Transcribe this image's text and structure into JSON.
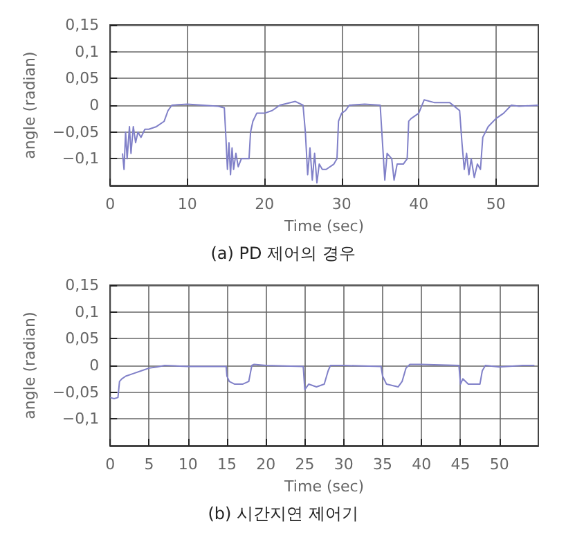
{
  "chart_data": [
    {
      "type": "line",
      "title": "(a) PD 제어의 경우",
      "xlabel": "Time (sec)",
      "ylabel": "angle (radian)",
      "grid": true,
      "marker": "none",
      "line_style": "solid",
      "xlim": [
        0,
        55.5
      ],
      "xticks": [
        0,
        10,
        20,
        30,
        40,
        50
      ],
      "ylim": [
        -0.15,
        0.15
      ],
      "yticks": [
        {
          "value": 0.15,
          "label": "0,15"
        },
        {
          "value": 0.1,
          "label": "0,1"
        },
        {
          "value": 0.05,
          "label": "0,05"
        },
        0,
        {
          "value": -0.05,
          "label": "−0,05"
        },
        {
          "value": -0.1,
          "label": "−0,1"
        }
      ],
      "series": [
        {
          "color": "#8080c8",
          "x": [
            1.6,
            1.8,
            2.0,
            2.2,
            2.5,
            2.7,
            3.0,
            3.3,
            3.6,
            4.0,
            4.5,
            5,
            6,
            7,
            7.5,
            8,
            10,
            12,
            14,
            14.8,
            15.0,
            15.2,
            15.4,
            15.6,
            15.8,
            16,
            16.3,
            16.6,
            17,
            18,
            18.2,
            18.5,
            19,
            20,
            21,
            22,
            24,
            25,
            25.3,
            25.6,
            25.9,
            26.2,
            26.5,
            26.8,
            27.1,
            27.5,
            28,
            29,
            29.4,
            29.6,
            30,
            30.5,
            31,
            33,
            35,
            35.3,
            35.6,
            35.9,
            36.5,
            36.8,
            37.2,
            38,
            38.5,
            38.7,
            39,
            40,
            40.7,
            42,
            44,
            45.3,
            45.6,
            45.9,
            46.2,
            46.5,
            46.8,
            47.2,
            47.6,
            48,
            48.3,
            49,
            50,
            51,
            52,
            53,
            55.5
          ],
          "values": [
            -0.09,
            -0.12,
            -0.05,
            -0.1,
            -0.04,
            -0.09,
            -0.04,
            -0.07,
            -0.05,
            -0.06,
            -0.045,
            -0.045,
            -0.04,
            -0.03,
            -0.01,
            0,
            0.002,
            0,
            -0.002,
            -0.005,
            -0.06,
            -0.12,
            -0.07,
            -0.13,
            -0.08,
            -0.12,
            -0.09,
            -0.115,
            -0.1,
            -0.1,
            -0.05,
            -0.03,
            -0.015,
            -0.015,
            -0.01,
            0,
            0.007,
            0,
            -0.05,
            -0.13,
            -0.08,
            -0.14,
            -0.09,
            -0.145,
            -0.11,
            -0.12,
            -0.12,
            -0.11,
            -0.1,
            -0.03,
            -0.015,
            -0.01,
            0,
            0.002,
            0,
            -0.07,
            -0.14,
            -0.09,
            -0.1,
            -0.14,
            -0.11,
            -0.11,
            -0.1,
            -0.03,
            -0.025,
            -0.015,
            0.01,
            0.005,
            0.005,
            -0.01,
            -0.07,
            -0.12,
            -0.09,
            -0.13,
            -0.1,
            -0.135,
            -0.11,
            -0.12,
            -0.06,
            -0.04,
            -0.025,
            -0.015,
            0,
            -0.002,
            0
          ]
        }
      ]
    },
    {
      "type": "line",
      "title": "(b) 시간지연 제어기",
      "xlabel": "Time (sec)",
      "ylabel": "angle (radian)",
      "grid": true,
      "marker": "none",
      "line_style": "solid",
      "xlim": [
        0,
        55
      ],
      "xticks": [
        0,
        5,
        10,
        15,
        20,
        25,
        30,
        35,
        40,
        45,
        50
      ],
      "ylim": [
        -0.15,
        0.15
      ],
      "yticks": [
        {
          "value": 0.15,
          "label": "0,15"
        },
        {
          "value": 0.1,
          "label": "0,1"
        },
        {
          "value": 0.05,
          "label": "0,05"
        },
        0,
        {
          "value": -0.05,
          "label": "−0,05"
        },
        {
          "value": -0.1,
          "label": "−0,1"
        }
      ],
      "series": [
        {
          "color": "#8080c8",
          "x": [
            0,
            0.5,
            1,
            1.2,
            1.5,
            2,
            3,
            4,
            5,
            6,
            7,
            10,
            14.9,
            15,
            15.3,
            16,
            17,
            17.8,
            18.2,
            18.5,
            20,
            24.8,
            25,
            25.5,
            26.5,
            27.5,
            28,
            28.3,
            30,
            34.8,
            35,
            35.5,
            37,
            37.5,
            38,
            38.5,
            40,
            44.8,
            45,
            45.3,
            46,
            47.5,
            47.8,
            48.2,
            50,
            51,
            53,
            54.5
          ],
          "values": [
            -0.06,
            -0.062,
            -0.06,
            -0.03,
            -0.025,
            -0.02,
            -0.015,
            -0.01,
            -0.005,
            -0.003,
            0,
            -0.002,
            -0.002,
            -0.02,
            -0.03,
            -0.035,
            -0.035,
            -0.03,
            0,
            0.002,
            0,
            -0.002,
            -0.045,
            -0.035,
            -0.04,
            -0.035,
            -0.01,
            0,
            0,
            -0.002,
            -0.02,
            -0.035,
            -0.04,
            -0.03,
            -0.005,
            0.002,
            0.002,
            0,
            -0.035,
            -0.025,
            -0.035,
            -0.035,
            -0.01,
            0,
            -0.003,
            -0.002,
            0,
            0
          ]
        }
      ]
    }
  ]
}
